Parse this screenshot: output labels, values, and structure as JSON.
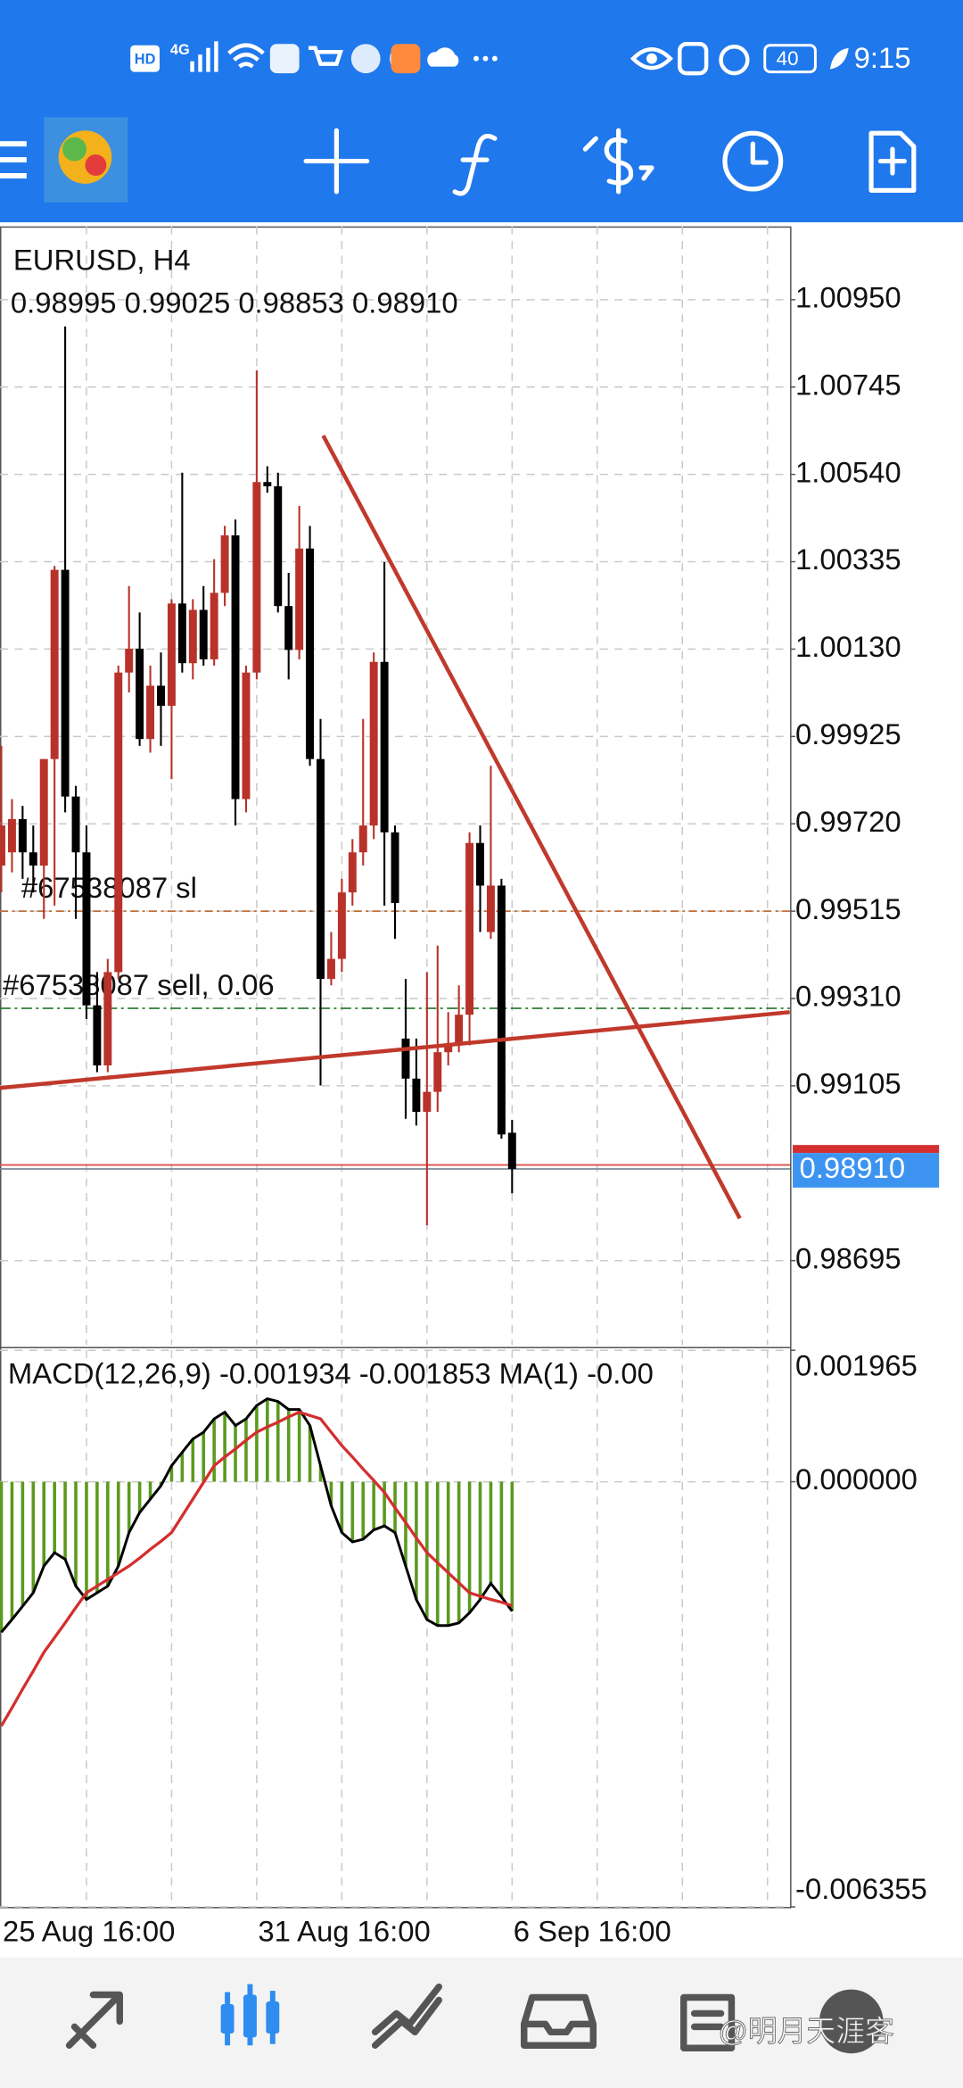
{
  "status_bar": {
    "hd": "HD",
    "network": "4G",
    "battery": "40",
    "time": "9:15"
  },
  "watermark": "@明月天涯客",
  "chart_data": [
    {
      "type": "candlestick",
      "title": "EURUSD, H4",
      "info": "0.98995 0.99025 0.98853 0.98910",
      "categories": [
        "25 Aug 16:00",
        null,
        null,
        null,
        null,
        null,
        null,
        null,
        null,
        null,
        null,
        null,
        null,
        null,
        null,
        null,
        null,
        null,
        null,
        null,
        null,
        null,
        null,
        null,
        "31 Aug 16:00",
        null,
        null,
        null,
        null,
        null,
        null,
        null,
        null,
        null,
        null,
        null,
        null,
        null,
        null,
        null,
        null,
        null,
        null,
        null,
        null,
        null,
        null,
        null,
        "6 Sep 16:00"
      ],
      "open": [
        0.99622,
        0.99653,
        0.99731,
        0.99653,
        0.99622,
        0.99872,
        1.00316,
        0.99784,
        0.99653,
        0.99294,
        0.99153,
        0.99372,
        1.00075,
        1.00131,
        0.99919,
        1.00044,
        0.99997,
        1.00237,
        1.00097,
        1.00222,
        1.00106,
        1.00262,
        1.00397,
        0.99778,
        1.00075,
        1.00522,
        1.00512,
        1.00231,
        1.00128,
        1.00366,
        0.99872,
        0.99356,
        0.99403,
        0.99559,
        0.99653,
        0.99716,
        1.001,
        0.997,
        0.99216,
        0.99122,
        0.99044,
        0.99091,
        0.99184,
        0.992,
        0.99272,
        0.99675,
        0.99466,
        0.99575,
        0.98995
      ],
      "high": [
        0.99903,
        0.99778,
        0.99762,
        0.99716,
        0.99872,
        1.00325,
        1.00887,
        0.99809,
        0.99716,
        0.99372,
        0.99403,
        1.00091,
        1.00278,
        1.00216,
        1.00091,
        1.00122,
        1.00247,
        1.00544,
        1.00247,
        1.00278,
        1.00341,
        1.00419,
        1.00434,
        1.00091,
        1.00784,
        1.00559,
        1.00544,
        1.00309,
        1.00466,
        1.00419,
        0.99966,
        0.99466,
        0.99591,
        0.99684,
        0.99966,
        1.00122,
        1.00334,
        0.99716,
        0.99356,
        0.99216,
        0.99372,
        0.99434,
        0.99278,
        0.99341,
        0.997,
        0.99716,
        0.99856,
        0.99591,
        0.99025
      ],
      "low": [
        0.99559,
        0.99606,
        0.99591,
        0.99559,
        0.99497,
        0.99528,
        0.99747,
        0.99497,
        0.99262,
        0.99137,
        0.99137,
        0.99356,
        1.00028,
        0.99903,
        0.99887,
        0.99903,
        0.99825,
        1.00075,
        1.00059,
        1.00091,
        1.00091,
        1.00231,
        0.99716,
        0.99747,
        1.00059,
        1.00497,
        1.00216,
        1.00059,
        1.00106,
        0.99856,
        0.99106,
        0.99341,
        0.99372,
        0.99528,
        0.99622,
        0.99684,
        0.99528,
        0.9945,
        0.99028,
        0.99012,
        0.98778,
        0.99044,
        0.99153,
        0.99184,
        0.992,
        0.99466,
        0.9945,
        0.98981,
        0.98853
      ],
      "close": [
        0.99716,
        0.99731,
        0.99653,
        0.99622,
        0.99872,
        1.00316,
        0.99784,
        0.99653,
        0.99294,
        0.99153,
        0.99372,
        1.00075,
        1.00131,
        0.99919,
        1.00044,
        0.99997,
        1.00237,
        1.00097,
        1.00222,
        1.00106,
        1.00262,
        1.00397,
        0.99778,
        1.00075,
        1.00522,
        1.00512,
        1.00231,
        1.00128,
        1.00366,
        0.99872,
        0.99356,
        0.99403,
        0.99559,
        0.99653,
        0.99716,
        1.001,
        0.997,
        0.99534,
        0.99122,
        0.99044,
        0.99091,
        0.99184,
        0.992,
        0.99272,
        0.99675,
        0.99575,
        0.99575,
        0.98991,
        0.9891
      ],
      "up_color": "#b8322a",
      "down_color": "#000000",
      "ylim": [
        0.98497,
        1.01122
      ],
      "yticks": [
        {
          "value": 1.0095,
          "label": "1.00950"
        },
        1.00745,
        {
          "value": 1.0054,
          "label": "1.00540"
        },
        1.00335,
        {
          "value": 1.0013,
          "label": "1.00130"
        },
        0.99925,
        {
          "value": 0.9972,
          "label": "0.99720"
        },
        0.99515,
        {
          "value": 0.9931,
          "label": "0.99310"
        },
        0.99105,
        0.98695
      ],
      "grid": true,
      "order_lines": [
        {
          "label": "#67538087 sl",
          "value": 0.99515,
          "color": "#c0703a"
        },
        {
          "label": "#67538087 sell, 0.06",
          "value": 0.99287,
          "color": "#2e7d32"
        }
      ],
      "current_price": {
        "value": 0.9891,
        "label": "0.98910"
      },
      "trendlines": [
        {
          "x": [
            30.25,
            69.4
          ],
          "y": [
            1.00631,
            0.98794
          ],
          "color": "#c0392b"
        },
        {
          "x": [
            -0.125,
            74.1
          ],
          "y": [
            0.991,
            0.99278
          ],
          "color": "#c0392b"
        }
      ]
    },
    {
      "type": "macd",
      "title": "MACD(12,26,9) -0.001934 -0.001853 MA(1) -0.00",
      "ylim": [
        -0.006355,
        0.001965
      ],
      "yticks": [
        0.001965,
        {
          "value": 0,
          "label": "0.000000"
        },
        -0.006355
      ],
      "series": [
        {
          "color": "#5b9a1e",
          "line_color": "#000000",
          "values": [
            -0.00225,
            -0.00206,
            -0.00186,
            -0.00166,
            -0.00126,
            -0.00106,
            -0.00116,
            -0.00156,
            -0.00176,
            -0.00166,
            -0.00156,
            -0.00126,
            -0.00076,
            -0.00046,
            -0.00026,
            -6e-05,
            0.00024,
            0.00044,
            0.00064,
            0.00074,
            0.00094,
            0.00104,
            0.00084,
            0.00094,
            0.00114,
            0.00124,
            0.0012,
            0.00108,
            0.00108,
            0.00084,
            0.00024,
            -0.00036,
            -0.00076,
            -0.0009,
            -0.00086,
            -0.00072,
            -0.00066,
            -0.00076,
            -0.00126,
            -0.00176,
            -0.00206,
            -0.00215,
            -0.00215,
            -0.00211,
            -0.00196,
            -0.00176,
            -0.00152,
            -0.00172,
            -0.001934
          ]
        },
        {
          "color": "#d32f2f",
          "values": [
            -0.00365,
            -0.00338,
            -0.0031,
            -0.00283,
            -0.00255,
            -0.00233,
            -0.00211,
            -0.00188,
            -0.00166,
            -0.00156,
            -0.00146,
            -0.00136,
            -0.00126,
            -0.00114,
            -0.00101,
            -0.00089,
            -0.00076,
            -0.00051,
            -0.00026,
            -1e-05,
            0.00024,
            0.00037,
            0.00049,
            0.00062,
            0.00074,
            0.00082,
            0.00089,
            0.00097,
            0.00104,
            0.00099,
            0.00094,
            0.00074,
            0.00054,
            0.00037,
            0.00019,
            2e-05,
            -0.00016,
            -0.00039,
            -0.00061,
            -0.00084,
            -0.00106,
            -0.00121,
            -0.00136,
            -0.00151,
            -0.00166,
            -0.00171,
            -0.00176,
            -0.0018,
            -0.001853
          ]
        }
      ]
    }
  ]
}
